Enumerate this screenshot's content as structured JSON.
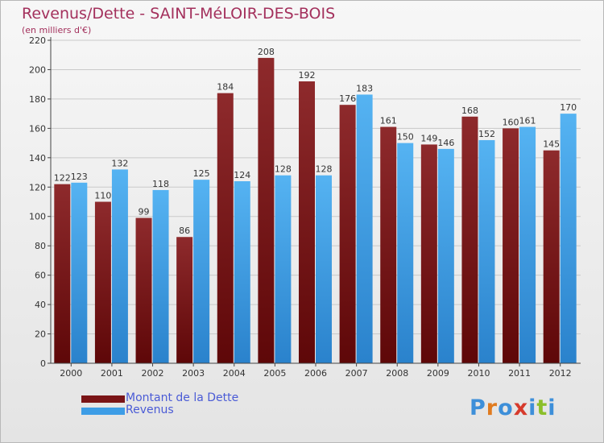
{
  "header": {
    "title": "Revenus/Dette - SAINT-MéLOIR-DES-BOIS",
    "subtitle": "(en milliers d'€)"
  },
  "legend": {
    "items": [
      {
        "label": "Montant de la Dette",
        "color": "#7a1416"
      },
      {
        "label": "Revenus",
        "color": "#3d9de6"
      }
    ]
  },
  "logo": {
    "text": "Proxiti",
    "colors": [
      "#3d8fd9",
      "#e07b1f",
      "#3d8fd9",
      "#d63a2c",
      "#3d8fd9",
      "#8bbf2a",
      "#3d8fd9"
    ]
  },
  "chart_data": {
    "type": "bar",
    "title": "Revenus/Dette - SAINT-MéLOIR-DES-BOIS",
    "subtitle": "(en milliers d'€)",
    "categories": [
      "2000",
      "2001",
      "2002",
      "2003",
      "2004",
      "2005",
      "2006",
      "2007",
      "2008",
      "2009",
      "2010",
      "2011",
      "2012"
    ],
    "series": [
      {
        "name": "Montant de la Dette",
        "color": "#7a1416",
        "values": [
          122,
          110,
          99,
          86,
          184,
          208,
          192,
          176,
          161,
          149,
          168,
          160,
          145
        ]
      },
      {
        "name": "Revenus",
        "color": "#3d9de6",
        "values": [
          123,
          132,
          118,
          125,
          124,
          128,
          128,
          183,
          150,
          146,
          152,
          161,
          170
        ]
      }
    ],
    "ylim": [
      0,
      220
    ],
    "yticks": [
      0,
      20,
      40,
      60,
      80,
      100,
      120,
      140,
      160,
      180,
      200,
      220
    ],
    "grid": true,
    "legend_position": "bottom-left"
  }
}
